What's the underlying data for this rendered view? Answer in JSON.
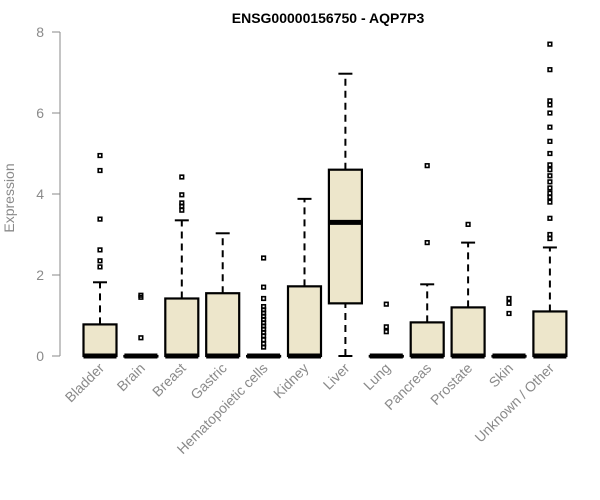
{
  "chart_data": {
    "type": "box",
    "title": "ENSG00000156750 - AQP7P3",
    "ylabel": "Expression",
    "xlabel": "",
    "ylim": [
      0,
      8
    ],
    "yticks": [
      0,
      2,
      4,
      6,
      8
    ],
    "grid": false,
    "legend": "none",
    "colors": {
      "box_fill": "#ede6cb",
      "axis": "#8a8a8a",
      "stroke": "#000000"
    },
    "categories": [
      "Bladder",
      "Brain",
      "Breast",
      "Gastric",
      "Hematopoietic cells",
      "Kidney",
      "Liver",
      "Lung",
      "Pancreas",
      "Prostate",
      "Skin",
      "Unknown / Other"
    ],
    "boxes": [
      {
        "category": "Bladder",
        "q1": 0,
        "median": 0,
        "q3": 0.78,
        "whisker_low": 0,
        "whisker_high": 1.82,
        "outliers": [
          2.2,
          2.35,
          2.62,
          3.38,
          4.58,
          4.95
        ]
      },
      {
        "category": "Brain",
        "q1": 0,
        "median": 0,
        "q3": 0,
        "whisker_low": 0,
        "whisker_high": 0,
        "outliers": [
          0.45,
          1.45,
          1.5
        ]
      },
      {
        "category": "Breast",
        "q1": 0,
        "median": 0,
        "q3": 1.42,
        "whisker_low": 0,
        "whisker_high": 3.35,
        "outliers": [
          3.6,
          3.7,
          3.78,
          3.98,
          4.42
        ]
      },
      {
        "category": "Gastric",
        "q1": 0,
        "median": 0,
        "q3": 1.55,
        "whisker_low": 0,
        "whisker_high": 3.03,
        "outliers": []
      },
      {
        "category": "Hematopoietic cells",
        "q1": 0,
        "median": 0,
        "q3": 0,
        "whisker_low": 0,
        "whisker_high": 0,
        "outliers": [
          0.22,
          0.3,
          0.4,
          0.5,
          0.58,
          0.66,
          0.74,
          0.82,
          0.9,
          0.98,
          1.06,
          1.14,
          1.22,
          1.42,
          1.7,
          2.42
        ]
      },
      {
        "category": "Kidney",
        "q1": 0,
        "median": 0,
        "q3": 1.72,
        "whisker_low": 0,
        "whisker_high": 3.88,
        "outliers": []
      },
      {
        "category": "Liver",
        "q1": 1.3,
        "median": 3.3,
        "q3": 4.6,
        "whisker_low": 0,
        "whisker_high": 6.97,
        "outliers": []
      },
      {
        "category": "Lung",
        "q1": 0,
        "median": 0,
        "q3": 0,
        "whisker_low": 0,
        "whisker_high": 0,
        "outliers": [
          0.6,
          0.72,
          1.28
        ]
      },
      {
        "category": "Pancreas",
        "q1": 0,
        "median": 0,
        "q3": 0.83,
        "whisker_low": 0,
        "whisker_high": 1.77,
        "outliers": [
          2.8,
          4.7
        ]
      },
      {
        "category": "Prostate",
        "q1": 0,
        "median": 0,
        "q3": 1.2,
        "whisker_low": 0,
        "whisker_high": 2.8,
        "outliers": [
          3.25
        ]
      },
      {
        "category": "Skin",
        "q1": 0,
        "median": 0,
        "q3": 0,
        "whisker_low": 0,
        "whisker_high": 0,
        "outliers": [
          1.05,
          1.3,
          1.42
        ]
      },
      {
        "category": "Unknown / Other",
        "q1": 0,
        "median": 0,
        "q3": 1.1,
        "whisker_low": 0,
        "whisker_high": 2.68,
        "outliers": [
          2.9,
          3.0,
          3.4,
          3.8,
          3.92,
          4.02,
          4.15,
          4.3,
          4.45,
          4.6,
          4.72,
          5.0,
          5.3,
          5.65,
          6.0,
          6.2,
          6.3,
          7.07,
          7.7
        ]
      }
    ]
  }
}
